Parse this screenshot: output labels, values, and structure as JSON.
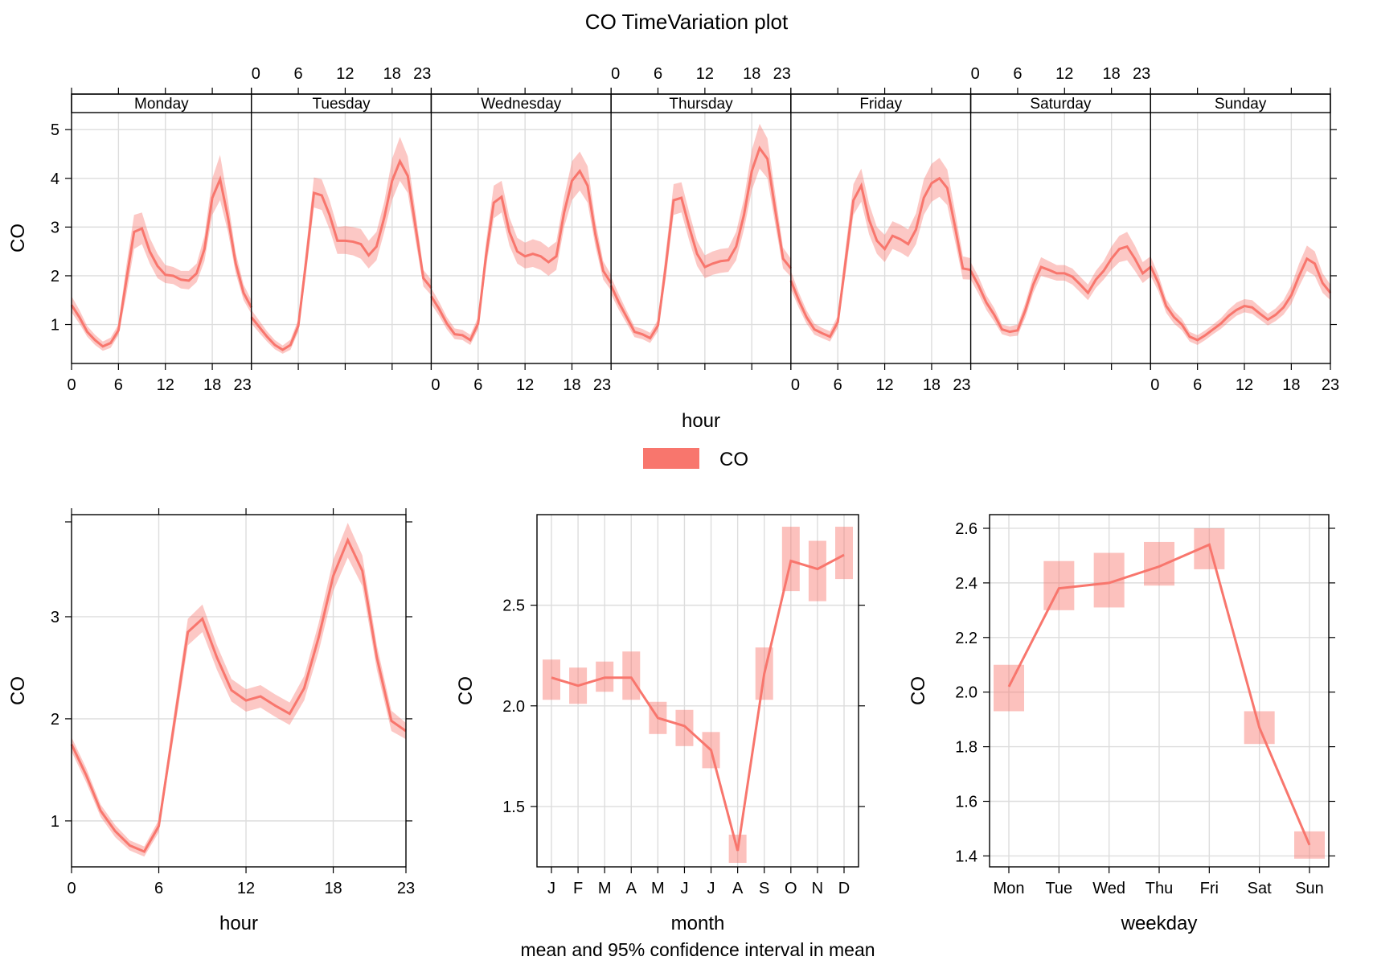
{
  "title": "CO TimeVariation plot",
  "legend": {
    "label": "CO",
    "color": "#F8766D"
  },
  "footnote": "mean and 95% confidence interval in mean",
  "colors": {
    "line": "#F8766D",
    "band": "#F8766D",
    "grid": "#dddddd"
  },
  "chart_data": [
    {
      "type": "line",
      "panel": "day-hour",
      "xlabel": "hour",
      "ylabel": "CO",
      "ylim": [
        0.2,
        5.35
      ],
      "yticks": [
        1,
        2,
        3,
        4,
        5
      ],
      "xticks": [
        0,
        6,
        12,
        18,
        23
      ],
      "days": [
        {
          "name": "Monday",
          "values": [
            1.4,
            1.15,
            0.85,
            0.68,
            0.55,
            0.62,
            0.88,
            1.9,
            2.9,
            2.97,
            2.5,
            2.2,
            2.02,
            2.0,
            1.92,
            1.9,
            2.05,
            2.55,
            3.6,
            3.98,
            3.2,
            2.25,
            1.65,
            1.35
          ],
          "lower": [
            1.25,
            1.02,
            0.75,
            0.58,
            0.46,
            0.52,
            0.78,
            1.6,
            2.55,
            2.65,
            2.25,
            1.95,
            1.85,
            1.83,
            1.74,
            1.72,
            1.87,
            2.3,
            3.25,
            3.55,
            2.9,
            2.05,
            1.5,
            1.22
          ],
          "upper": [
            1.58,
            1.3,
            0.97,
            0.79,
            0.65,
            0.73,
            1.0,
            2.2,
            3.25,
            3.3,
            2.78,
            2.45,
            2.22,
            2.18,
            2.1,
            2.1,
            2.25,
            2.82,
            4.0,
            4.48,
            3.55,
            2.47,
            1.82,
            1.5
          ]
        },
        {
          "name": "Tuesday",
          "values": [
            1.15,
            0.95,
            0.75,
            0.58,
            0.48,
            0.58,
            0.97,
            2.3,
            3.7,
            3.65,
            3.25,
            2.72,
            2.72,
            2.7,
            2.65,
            2.42,
            2.6,
            3.2,
            3.95,
            4.35,
            4.05,
            3.0,
            1.95,
            1.75
          ],
          "lower": [
            1.02,
            0.83,
            0.65,
            0.49,
            0.4,
            0.48,
            0.85,
            2.05,
            3.4,
            3.35,
            2.95,
            2.45,
            2.45,
            2.42,
            2.35,
            2.15,
            2.32,
            2.9,
            3.55,
            3.95,
            3.7,
            2.72,
            1.78,
            1.6
          ],
          "upper": [
            1.3,
            1.08,
            0.86,
            0.68,
            0.57,
            0.69,
            1.1,
            2.55,
            4.02,
            3.98,
            3.55,
            3.0,
            3.02,
            3.0,
            2.96,
            2.72,
            2.9,
            3.52,
            4.4,
            4.85,
            4.45,
            3.3,
            2.12,
            1.92
          ]
        },
        {
          "name": "Wednesday",
          "values": [
            1.58,
            1.32,
            1.02,
            0.8,
            0.78,
            0.68,
            1.02,
            2.4,
            3.5,
            3.62,
            2.9,
            2.5,
            2.4,
            2.45,
            2.4,
            2.28,
            2.4,
            3.3,
            3.95,
            4.15,
            3.85,
            2.85,
            2.1,
            1.85
          ],
          "lower": [
            1.42,
            1.18,
            0.9,
            0.7,
            0.68,
            0.58,
            0.9,
            2.15,
            3.18,
            3.3,
            2.62,
            2.25,
            2.15,
            2.18,
            2.12,
            2.0,
            2.12,
            3.0,
            3.55,
            3.75,
            3.5,
            2.6,
            1.92,
            1.7
          ],
          "upper": [
            1.75,
            1.47,
            1.15,
            0.92,
            0.89,
            0.79,
            1.15,
            2.68,
            3.85,
            3.95,
            3.2,
            2.78,
            2.68,
            2.75,
            2.7,
            2.58,
            2.7,
            3.62,
            4.35,
            4.55,
            4.25,
            3.12,
            2.3,
            2.02
          ]
        },
        {
          "name": "Thursday",
          "values": [
            1.8,
            1.45,
            1.15,
            0.85,
            0.8,
            0.72,
            0.98,
            2.2,
            3.55,
            3.6,
            3.0,
            2.45,
            2.18,
            2.25,
            2.3,
            2.32,
            2.6,
            3.25,
            4.15,
            4.62,
            4.4,
            3.35,
            2.35,
            2.15
          ],
          "lower": [
            1.62,
            1.3,
            1.02,
            0.74,
            0.7,
            0.62,
            0.86,
            1.95,
            3.25,
            3.3,
            2.72,
            2.2,
            1.95,
            2.02,
            2.06,
            2.08,
            2.32,
            2.95,
            3.75,
            4.2,
            4.0,
            3.05,
            2.15,
            1.98
          ],
          "upper": [
            1.98,
            1.62,
            1.28,
            0.96,
            0.91,
            0.83,
            1.1,
            2.48,
            3.88,
            3.92,
            3.3,
            2.72,
            2.42,
            2.5,
            2.55,
            2.57,
            2.9,
            3.58,
            4.58,
            5.12,
            4.82,
            3.68,
            2.58,
            2.35
          ]
        },
        {
          "name": "Friday",
          "values": [
            1.9,
            1.5,
            1.15,
            0.9,
            0.82,
            0.75,
            1.05,
            2.3,
            3.55,
            3.85,
            3.15,
            2.72,
            2.55,
            2.82,
            2.75,
            2.65,
            2.95,
            3.6,
            3.9,
            4.0,
            3.8,
            3.0,
            2.15,
            2.12
          ],
          "lower": [
            1.72,
            1.35,
            1.02,
            0.79,
            0.72,
            0.65,
            0.93,
            2.05,
            3.25,
            3.52,
            2.85,
            2.45,
            2.28,
            2.55,
            2.48,
            2.38,
            2.65,
            3.25,
            3.52,
            3.62,
            3.45,
            2.7,
            1.93,
            1.92
          ],
          "upper": [
            2.1,
            1.66,
            1.29,
            1.02,
            0.93,
            0.86,
            1.18,
            2.58,
            3.88,
            4.2,
            3.48,
            3.0,
            2.84,
            3.12,
            3.05,
            2.95,
            3.28,
            3.98,
            4.3,
            4.42,
            4.18,
            3.32,
            2.4,
            2.36
          ]
        },
        {
          "name": "Saturday",
          "values": [
            2.1,
            1.8,
            1.45,
            1.2,
            0.9,
            0.85,
            0.88,
            1.3,
            1.82,
            2.18,
            2.12,
            2.05,
            2.05,
            1.98,
            1.82,
            1.65,
            1.92,
            2.1,
            2.35,
            2.55,
            2.6,
            2.35,
            2.05,
            2.18
          ],
          "lower": [
            1.92,
            1.63,
            1.3,
            1.06,
            0.8,
            0.75,
            0.77,
            1.15,
            1.65,
            2.0,
            1.95,
            1.9,
            1.9,
            1.82,
            1.66,
            1.5,
            1.75,
            1.92,
            2.12,
            2.28,
            2.32,
            2.1,
            1.85,
            1.98
          ],
          "upper": [
            2.28,
            1.98,
            1.6,
            1.34,
            1.0,
            0.96,
            1.0,
            1.45,
            2.0,
            2.38,
            2.3,
            2.22,
            2.22,
            2.15,
            1.98,
            1.82,
            2.1,
            2.3,
            2.6,
            2.82,
            2.9,
            2.62,
            2.28,
            2.4
          ]
        },
        {
          "name": "Sunday",
          "values": [
            2.2,
            1.85,
            1.38,
            1.15,
            1.0,
            0.75,
            0.68,
            0.78,
            0.9,
            1.02,
            1.18,
            1.3,
            1.38,
            1.35,
            1.22,
            1.1,
            1.2,
            1.35,
            1.6,
            2.0,
            2.35,
            2.25,
            1.85,
            1.65
          ],
          "lower": [
            2.0,
            1.68,
            1.24,
            1.02,
            0.88,
            0.65,
            0.58,
            0.68,
            0.8,
            0.91,
            1.05,
            1.18,
            1.25,
            1.22,
            1.1,
            0.98,
            1.07,
            1.2,
            1.42,
            1.78,
            2.1,
            2.0,
            1.65,
            1.5
          ],
          "upper": [
            2.4,
            2.02,
            1.52,
            1.28,
            1.12,
            0.85,
            0.78,
            0.88,
            1.0,
            1.13,
            1.31,
            1.45,
            1.52,
            1.5,
            1.36,
            1.22,
            1.33,
            1.5,
            1.8,
            2.25,
            2.62,
            2.5,
            2.05,
            1.82
          ]
        }
      ]
    },
    {
      "type": "line",
      "panel": "hour",
      "xlabel": "hour",
      "ylabel": "CO",
      "xlim": [
        0,
        23
      ],
      "ylim": [
        0.55,
        4.0
      ],
      "xticks": [
        0,
        6,
        12,
        18,
        23
      ],
      "yticks": [
        1,
        2,
        3
      ],
      "x": [
        0,
        1,
        2,
        3,
        4,
        5,
        6,
        7,
        8,
        9,
        10,
        11,
        12,
        13,
        14,
        15,
        16,
        17,
        18,
        19,
        20,
        21,
        22,
        23
      ],
      "values": [
        1.75,
        1.45,
        1.1,
        0.9,
        0.76,
        0.7,
        0.95,
        1.9,
        2.85,
        2.98,
        2.6,
        2.28,
        2.18,
        2.22,
        2.13,
        2.05,
        2.3,
        2.8,
        3.4,
        3.75,
        3.45,
        2.6,
        1.98,
        1.88
      ],
      "lower": [
        1.68,
        1.38,
        1.04,
        0.84,
        0.71,
        0.65,
        0.89,
        1.8,
        2.72,
        2.85,
        2.48,
        2.17,
        2.07,
        2.11,
        2.02,
        1.94,
        2.18,
        2.66,
        3.25,
        3.58,
        3.3,
        2.48,
        1.88,
        1.8
      ],
      "upper": [
        1.82,
        1.52,
        1.16,
        0.96,
        0.81,
        0.75,
        1.01,
        2.0,
        2.98,
        3.12,
        2.72,
        2.39,
        2.29,
        2.33,
        2.24,
        2.16,
        2.42,
        2.94,
        3.56,
        3.92,
        3.6,
        2.72,
        2.08,
        1.96
      ]
    },
    {
      "type": "line",
      "panel": "month",
      "xlabel": "month",
      "ylabel": "CO",
      "ylim": [
        1.2,
        2.95
      ],
      "yticks": [
        1.5,
        2.0,
        2.5
      ],
      "categories": [
        "J",
        "F",
        "M",
        "A",
        "M",
        "J",
        "J",
        "A",
        "S",
        "O",
        "N",
        "D"
      ],
      "values": [
        2.14,
        2.1,
        2.14,
        2.14,
        1.94,
        1.9,
        1.78,
        1.28,
        2.16,
        2.72,
        2.68,
        2.75
      ],
      "lower": [
        2.03,
        2.01,
        2.07,
        2.03,
        1.86,
        1.8,
        1.69,
        1.22,
        2.03,
        2.57,
        2.52,
        2.63
      ],
      "upper": [
        2.23,
        2.19,
        2.22,
        2.27,
        2.02,
        1.98,
        1.87,
        1.36,
        2.29,
        2.89,
        2.82,
        2.89
      ]
    },
    {
      "type": "line",
      "panel": "weekday",
      "xlabel": "weekday",
      "ylabel": "CO",
      "ylim": [
        1.36,
        2.65
      ],
      "yticks": [
        1.4,
        1.6,
        1.8,
        2.0,
        2.2,
        2.4,
        2.6
      ],
      "categories": [
        "Mon",
        "Tue",
        "Wed",
        "Thu",
        "Fri",
        "Sat",
        "Sun"
      ],
      "values": [
        2.02,
        2.38,
        2.4,
        2.46,
        2.54,
        1.87,
        1.44
      ],
      "lower": [
        1.93,
        2.3,
        2.31,
        2.39,
        2.45,
        1.81,
        1.39
      ],
      "upper": [
        2.1,
        2.48,
        2.51,
        2.55,
        2.6,
        1.93,
        1.49
      ]
    }
  ]
}
